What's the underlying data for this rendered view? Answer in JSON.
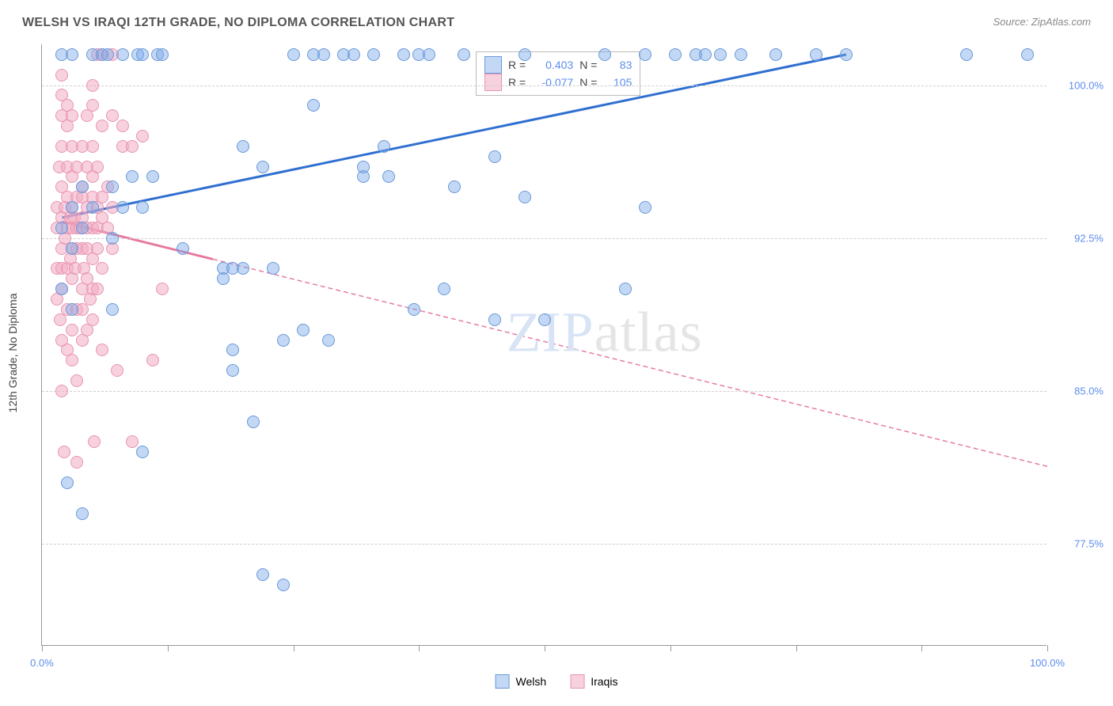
{
  "title": "WELSH VS IRAQI 12TH GRADE, NO DIPLOMA CORRELATION CHART",
  "source": "Source: ZipAtlas.com",
  "watermark_bold": "ZIP",
  "watermark_thin": "atlas",
  "ylabel": "12th Grade, No Diploma",
  "chart": {
    "type": "scatter",
    "xlim": [
      0,
      100
    ],
    "ylim": [
      72.5,
      102
    ],
    "x_ticks": [
      0,
      12.5,
      25,
      37.5,
      50,
      62.5,
      75,
      87.5,
      100
    ],
    "x_tick_labels": {
      "0": "0.0%",
      "100": "100.0%"
    },
    "y_ticks": [
      77.5,
      85.0,
      92.5,
      100.0
    ],
    "y_tick_labels": [
      "77.5%",
      "85.0%",
      "92.5%",
      "100.0%"
    ],
    "background_color": "#ffffff",
    "grid_color": "#d0d0d0",
    "axis_color": "#999999",
    "tick_label_color": "#5b8def",
    "marker_radius": 8,
    "series": [
      {
        "name": "Welsh",
        "color_fill": "rgba(123,169,232,0.45)",
        "color_stroke": "#6a98d8",
        "trend": {
          "x1": 2,
          "y1": 93.5,
          "x2": 80,
          "y2": 101.5,
          "solid_until_x": 80,
          "color": "#2f6fd0"
        },
        "r_label": "R =",
        "r_value": "0.403",
        "n_label": "N =",
        "n_value": "83",
        "points": [
          [
            2,
            90
          ],
          [
            2,
            93
          ],
          [
            2,
            101.5
          ],
          [
            2.5,
            80.5
          ],
          [
            3,
            92
          ],
          [
            3,
            94
          ],
          [
            3,
            101.5
          ],
          [
            3,
            89
          ],
          [
            4,
            79
          ],
          [
            4,
            95
          ],
          [
            4,
            93
          ],
          [
            5,
            94
          ],
          [
            5,
            101.5
          ],
          [
            6,
            101.5
          ],
          [
            6.5,
            101.5
          ],
          [
            7,
            95
          ],
          [
            7,
            92.5
          ],
          [
            7,
            89
          ],
          [
            8,
            94
          ],
          [
            8,
            101.5
          ],
          [
            9,
            95.5
          ],
          [
            9.5,
            101.5
          ],
          [
            10,
            82
          ],
          [
            10,
            94
          ],
          [
            10,
            101.5
          ],
          [
            11,
            95.5
          ],
          [
            11.5,
            101.5
          ],
          [
            12,
            101.5
          ],
          [
            14,
            92
          ],
          [
            18,
            90.5
          ],
          [
            18,
            91
          ],
          [
            19,
            91
          ],
          [
            19,
            86
          ],
          [
            19,
            87
          ],
          [
            20,
            91
          ],
          [
            20,
            97
          ],
          [
            21,
            83.5
          ],
          [
            22,
            76
          ],
          [
            22,
            96
          ],
          [
            23,
            91
          ],
          [
            24,
            87.5
          ],
          [
            24,
            75.5
          ],
          [
            25,
            101.5
          ],
          [
            26,
            88
          ],
          [
            27,
            99
          ],
          [
            27,
            101.5
          ],
          [
            28,
            101.5
          ],
          [
            28.5,
            87.5
          ],
          [
            30,
            101.5
          ],
          [
            31,
            101.5
          ],
          [
            32,
            95.5
          ],
          [
            32,
            96
          ],
          [
            33,
            101.5
          ],
          [
            34,
            97
          ],
          [
            34.5,
            95.5
          ],
          [
            36,
            101.5
          ],
          [
            37,
            89
          ],
          [
            37.5,
            101.5
          ],
          [
            38.5,
            101.5
          ],
          [
            40,
            90
          ],
          [
            41,
            95
          ],
          [
            42,
            101.5
          ],
          [
            45,
            96.5
          ],
          [
            45,
            88.5
          ],
          [
            48,
            94.5
          ],
          [
            48,
            101.5
          ],
          [
            50,
            88.5
          ],
          [
            56,
            101.5
          ],
          [
            58,
            90
          ],
          [
            60,
            101.5
          ],
          [
            60,
            94
          ],
          [
            63,
            101.5
          ],
          [
            65,
            101.5
          ],
          [
            66,
            101.5
          ],
          [
            67.5,
            101.5
          ],
          [
            69.5,
            101.5
          ],
          [
            73,
            101.5
          ],
          [
            77,
            101.5
          ],
          [
            80,
            101.5
          ],
          [
            92,
            101.5
          ],
          [
            98,
            101.5
          ]
        ]
      },
      {
        "name": "Iraqis",
        "color_fill": "rgba(243,172,195,0.55)",
        "color_stroke": "#e895b0",
        "trend": {
          "x1": 2,
          "y1": 93.3,
          "x2": 100,
          "y2": 81.3,
          "solid_until_x": 17,
          "color": "#e67aa0"
        },
        "r_label": "R =",
        "r_value": "-0.077",
        "n_label": "N =",
        "n_value": "105",
        "points": [
          [
            1.5,
            93
          ],
          [
            1.5,
            94
          ],
          [
            1.5,
            91
          ],
          [
            1.5,
            89.5
          ],
          [
            1.7,
            96
          ],
          [
            1.8,
            88.5
          ],
          [
            2,
            93.5
          ],
          [
            2,
            92
          ],
          [
            2,
            91
          ],
          [
            2,
            90
          ],
          [
            2,
            95
          ],
          [
            2,
            97
          ],
          [
            2,
            98.5
          ],
          [
            2,
            99.5
          ],
          [
            2,
            100.5
          ],
          [
            2,
            87.5
          ],
          [
            2,
            85
          ],
          [
            2.2,
            82
          ],
          [
            2.3,
            94
          ],
          [
            2.3,
            92.5
          ],
          [
            2.5,
            93
          ],
          [
            2.5,
            94.5
          ],
          [
            2.5,
            91
          ],
          [
            2.5,
            96
          ],
          [
            2.5,
            98
          ],
          [
            2.5,
            99
          ],
          [
            2.5,
            89
          ],
          [
            2.5,
            87
          ],
          [
            2.8,
            93.5
          ],
          [
            2.8,
            91.5
          ],
          [
            3,
            93
          ],
          [
            3,
            94
          ],
          [
            3,
            92
          ],
          [
            3,
            90.5
          ],
          [
            3,
            95.5
          ],
          [
            3,
            97
          ],
          [
            3,
            98.5
          ],
          [
            3,
            86.5
          ],
          [
            3,
            88
          ],
          [
            3.2,
            93.5
          ],
          [
            3.3,
            91
          ],
          [
            3.5,
            93
          ],
          [
            3.5,
            94.5
          ],
          [
            3.5,
            92
          ],
          [
            3.5,
            89
          ],
          [
            3.5,
            96
          ],
          [
            3.5,
            85.5
          ],
          [
            3.5,
            81.5
          ],
          [
            3.8,
            93
          ],
          [
            4,
            93.5
          ],
          [
            4,
            94.5
          ],
          [
            4,
            92
          ],
          [
            4,
            90
          ],
          [
            4,
            95
          ],
          [
            4,
            97
          ],
          [
            4,
            87.5
          ],
          [
            4,
            89
          ],
          [
            4.2,
            91
          ],
          [
            4.5,
            93
          ],
          [
            4.5,
            94
          ],
          [
            4.5,
            92
          ],
          [
            4.5,
            90.5
          ],
          [
            4.5,
            96
          ],
          [
            4.5,
            98.5
          ],
          [
            4.5,
            88
          ],
          [
            4.8,
            89.5
          ],
          [
            5,
            93
          ],
          [
            5,
            94.5
          ],
          [
            5,
            91.5
          ],
          [
            5,
            95.5
          ],
          [
            5,
            97
          ],
          [
            5,
            99
          ],
          [
            5,
            100
          ],
          [
            5,
            90
          ],
          [
            5,
            88.5
          ],
          [
            5.2,
            82.5
          ],
          [
            5.5,
            93
          ],
          [
            5.5,
            94
          ],
          [
            5.5,
            92
          ],
          [
            5.5,
            90
          ],
          [
            5.5,
            96
          ],
          [
            5.5,
            101.5
          ],
          [
            6,
            93.5
          ],
          [
            6,
            94.5
          ],
          [
            6,
            91
          ],
          [
            6,
            98
          ],
          [
            6,
            101.5
          ],
          [
            6,
            87
          ],
          [
            6.5,
            93
          ],
          [
            6.5,
            95
          ],
          [
            7,
            94
          ],
          [
            7,
            92
          ],
          [
            7,
            98.5
          ],
          [
            7,
            101.5
          ],
          [
            7.5,
            86
          ],
          [
            8,
            97
          ],
          [
            8,
            98
          ],
          [
            9,
            97
          ],
          [
            9,
            82.5
          ],
          [
            10,
            97.5
          ],
          [
            11,
            86.5
          ],
          [
            12,
            90
          ]
        ]
      }
    ],
    "bottom_legend": [
      {
        "label": "Welsh",
        "fill": "rgba(123,169,232,0.45)",
        "stroke": "#6a98d8"
      },
      {
        "label": "Iraqis",
        "fill": "rgba(243,172,195,0.55)",
        "stroke": "#e895b0"
      }
    ]
  }
}
